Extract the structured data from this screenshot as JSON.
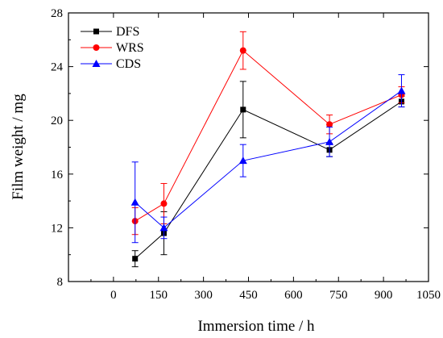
{
  "chart_data": {
    "type": "line",
    "xlabel": "Immersion time / h",
    "ylabel": "Film weight / mg",
    "xlim": [
      -150,
      1050
    ],
    "ylim": [
      8,
      28
    ],
    "xticks": [
      0,
      150,
      300,
      450,
      600,
      750,
      900,
      1050
    ],
    "yticks": [
      8,
      12,
      16,
      20,
      24,
      28
    ],
    "grid": false,
    "legend_position": "top-left",
    "x": [
      72,
      168,
      432,
      720,
      960
    ],
    "series": [
      {
        "name": "DFS",
        "color": "#000000",
        "marker": "square",
        "values": [
          9.7,
          11.6,
          20.8,
          17.8,
          21.4
        ],
        "errors": [
          0.6,
          1.6,
          2.1,
          0.5,
          0.4
        ]
      },
      {
        "name": "WRS",
        "color": "#ff0000",
        "marker": "circle",
        "values": [
          12.5,
          13.8,
          25.2,
          19.7,
          21.9
        ],
        "errors": [
          1.0,
          1.5,
          1.4,
          0.7,
          0.6
        ]
      },
      {
        "name": "CDS",
        "color": "#0000ff",
        "marker": "triangle",
        "values": [
          13.9,
          12.0,
          17.0,
          18.4,
          22.2
        ],
        "errors": [
          3.0,
          0.8,
          1.2,
          1.1,
          1.2
        ]
      }
    ]
  }
}
